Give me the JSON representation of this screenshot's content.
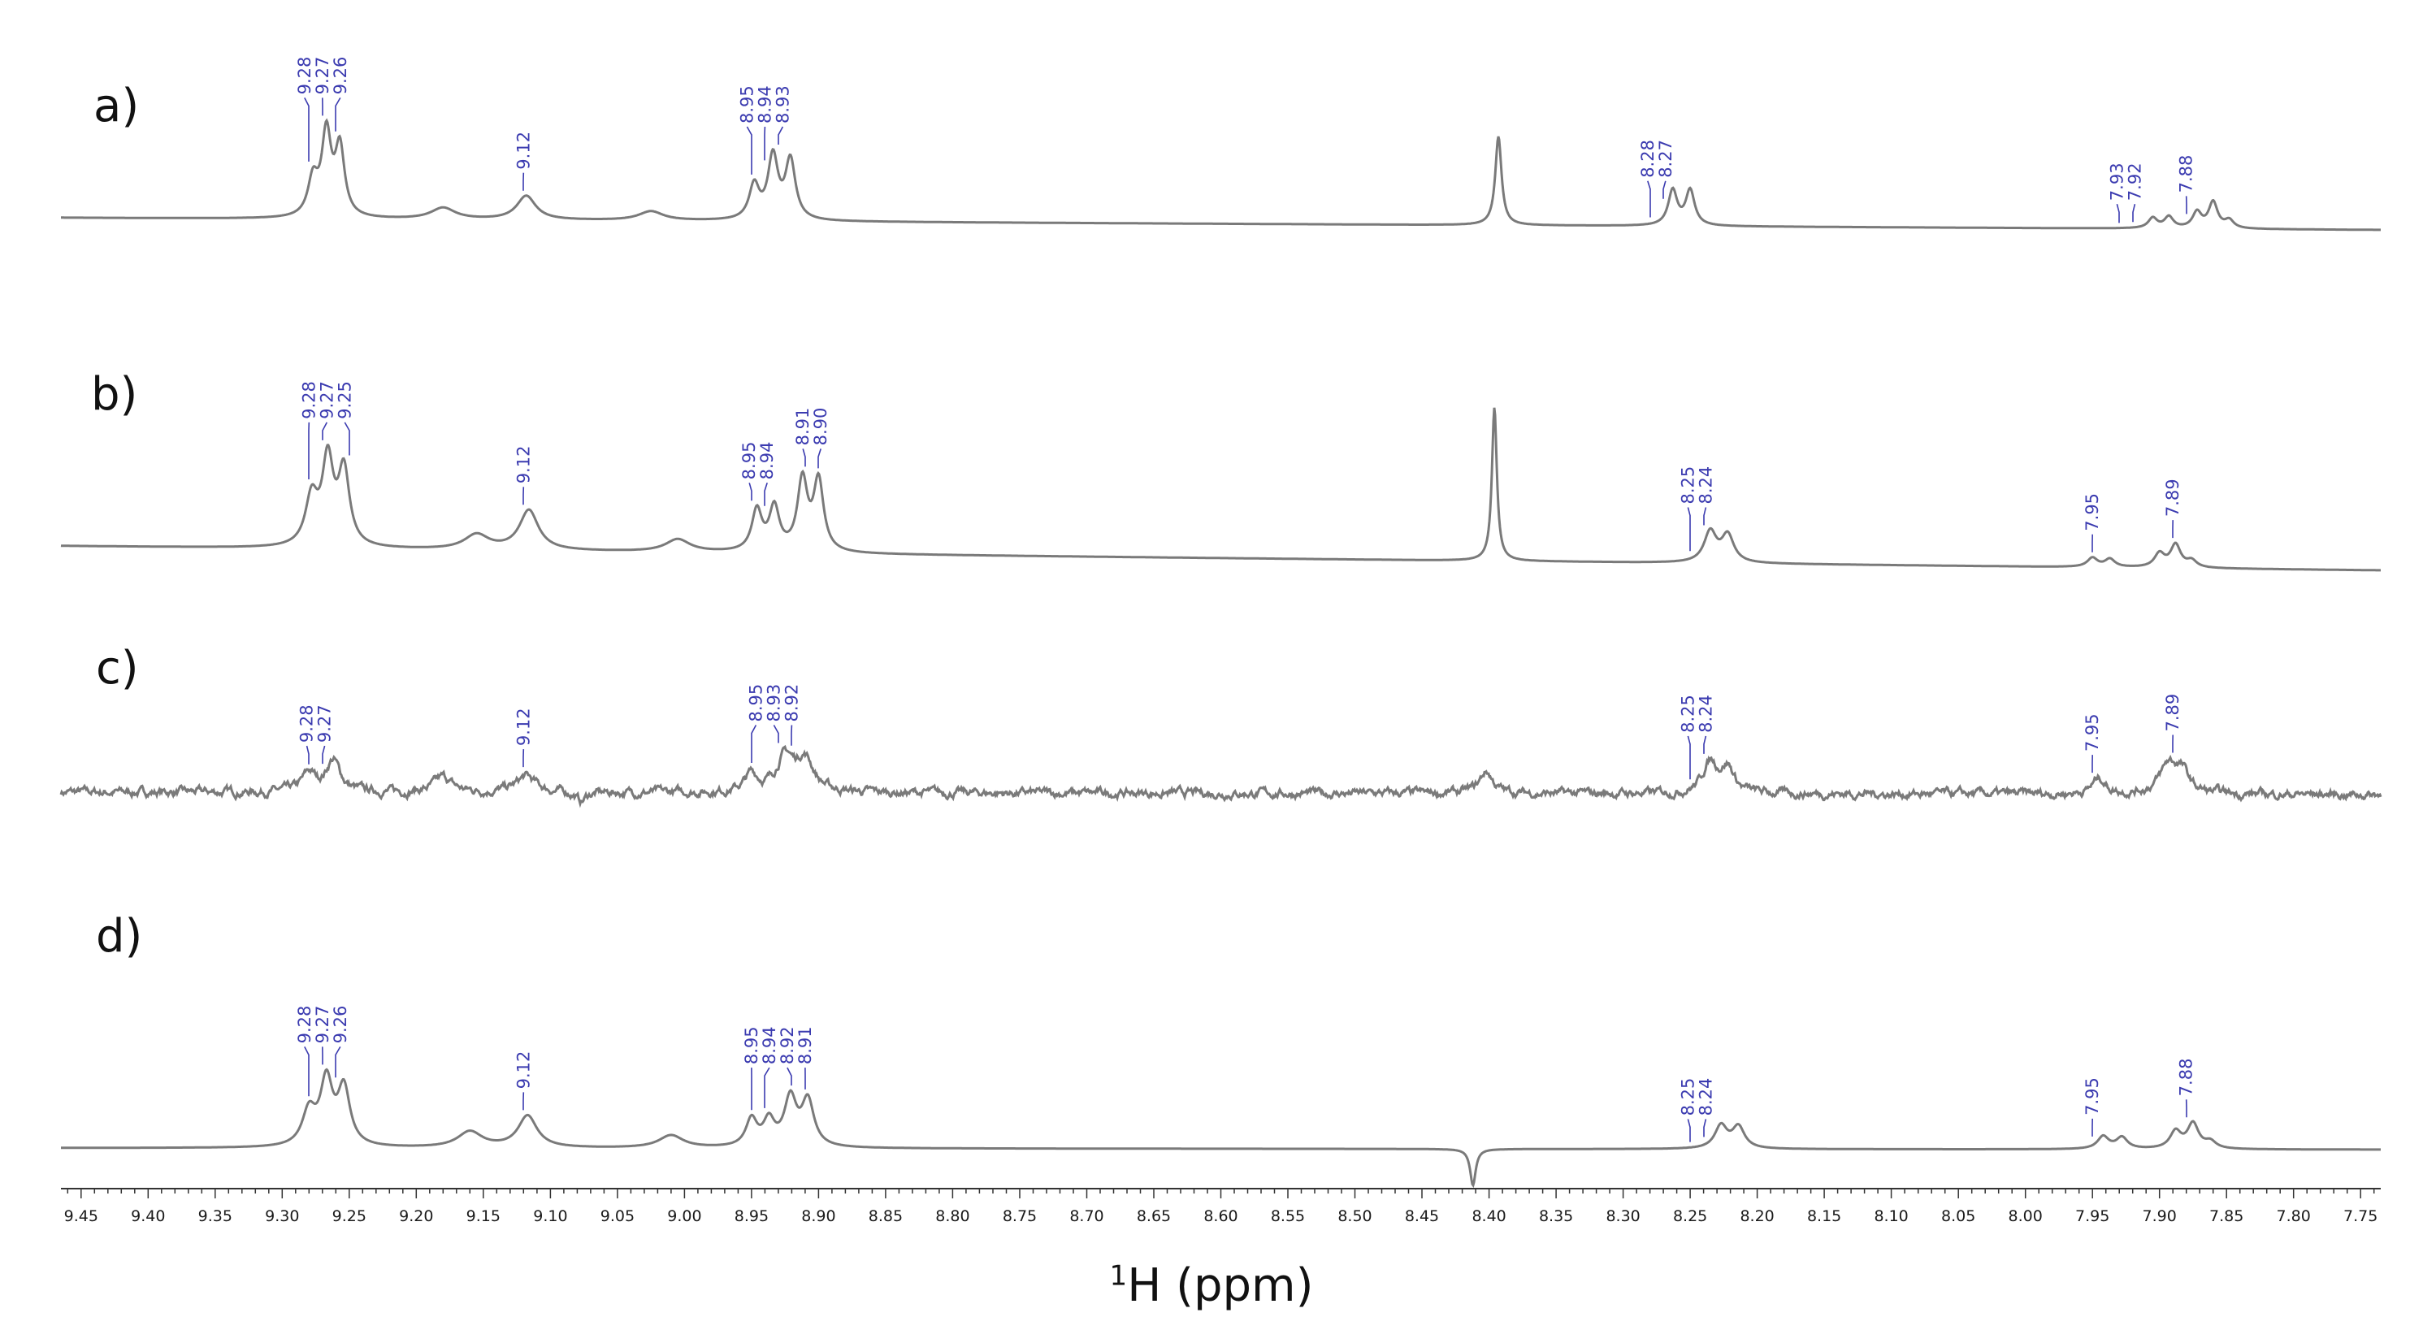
{
  "chart_data": {
    "type": "line",
    "xlabel_pre": "1",
    "xlabel_post": "H (ppm)",
    "xlim": [
      9.465,
      7.735
    ],
    "x_reversed": true,
    "ticks": [
      "9.45",
      "9.40",
      "9.35",
      "9.30",
      "9.25",
      "9.20",
      "9.15",
      "9.10",
      "9.05",
      "9.00",
      "8.95",
      "8.90",
      "8.85",
      "8.80",
      "8.75",
      "8.70",
      "8.65",
      "8.60",
      "8.55",
      "8.50",
      "8.45",
      "8.40",
      "8.35",
      "8.30",
      "8.25",
      "8.20",
      "8.15",
      "8.10",
      "8.05",
      "8.00",
      "7.95",
      "7.90",
      "7.85",
      "7.80",
      "7.75"
    ],
    "line_color": "#7a7a7a",
    "peak_label_color": "#3b3bb0",
    "spectra": [
      {
        "label": "a)",
        "peak_labels": [
          "9.28",
          "9.27",
          "9.26",
          "9.12",
          "8.95",
          "8.94",
          "8.93",
          "8.28",
          "8.27",
          "7.93",
          "7.92",
          "7.88"
        ],
        "peaks": [
          {
            "x": 9.277,
            "h": 0.32,
            "w": 0.0045
          },
          {
            "x": 9.267,
            "h": 0.72,
            "w": 0.0042
          },
          {
            "x": 9.257,
            "h": 0.6,
            "w": 0.0042
          },
          {
            "x": 9.18,
            "h": 0.1,
            "w": 0.011
          },
          {
            "x": 9.118,
            "h": 0.21,
            "w": 0.0085
          },
          {
            "x": 9.025,
            "h": 0.08,
            "w": 0.011
          },
          {
            "x": 8.948,
            "h": 0.3,
            "w": 0.0045
          },
          {
            "x": 8.934,
            "h": 0.55,
            "w": 0.0045
          },
          {
            "x": 8.921,
            "h": 0.52,
            "w": 0.0045
          },
          {
            "x": 8.393,
            "h": 0.78,
            "w": 0.0028
          },
          {
            "x": 8.263,
            "h": 0.31,
            "w": 0.004
          },
          {
            "x": 8.25,
            "h": 0.31,
            "w": 0.004
          },
          {
            "x": 7.905,
            "h": 0.09,
            "w": 0.004
          },
          {
            "x": 7.893,
            "h": 0.1,
            "w": 0.004
          },
          {
            "x": 7.872,
            "h": 0.14,
            "w": 0.004
          },
          {
            "x": 7.86,
            "h": 0.23,
            "w": 0.004
          },
          {
            "x": 7.848,
            "h": 0.07,
            "w": 0.004
          }
        ]
      },
      {
        "label": "b)",
        "peak_labels": [
          "9.28",
          "9.27",
          "9.25",
          "9.12",
          "8.95",
          "8.94",
          "8.91",
          "8.90",
          "8.25",
          "8.24",
          "7.95",
          "7.89"
        ],
        "peaks": [
          {
            "x": 9.278,
            "h": 0.42,
            "w": 0.0055
          },
          {
            "x": 9.266,
            "h": 0.74,
            "w": 0.005
          },
          {
            "x": 9.254,
            "h": 0.66,
            "w": 0.005
          },
          {
            "x": 9.155,
            "h": 0.13,
            "w": 0.011
          },
          {
            "x": 9.116,
            "h": 0.35,
            "w": 0.0085
          },
          {
            "x": 9.005,
            "h": 0.11,
            "w": 0.011
          },
          {
            "x": 8.946,
            "h": 0.36,
            "w": 0.0045
          },
          {
            "x": 8.933,
            "h": 0.38,
            "w": 0.0045
          },
          {
            "x": 8.912,
            "h": 0.62,
            "w": 0.0045
          },
          {
            "x": 8.9,
            "h": 0.62,
            "w": 0.0045
          },
          {
            "x": 8.396,
            "h": 1.35,
            "w": 0.0022
          },
          {
            "x": 8.235,
            "h": 0.27,
            "w": 0.0055
          },
          {
            "x": 8.222,
            "h": 0.24,
            "w": 0.0055
          },
          {
            "x": 7.95,
            "h": 0.08,
            "w": 0.0045
          },
          {
            "x": 7.937,
            "h": 0.07,
            "w": 0.0045
          },
          {
            "x": 7.9,
            "h": 0.12,
            "w": 0.0045
          },
          {
            "x": 7.888,
            "h": 0.2,
            "w": 0.0045
          },
          {
            "x": 7.876,
            "h": 0.06,
            "w": 0.0045
          }
        ]
      },
      {
        "label": "c)",
        "peak_labels": [
          "9.28",
          "9.27",
          "9.12",
          "8.95",
          "8.93",
          "8.92",
          "8.25",
          "8.24",
          "7.95",
          "7.89"
        ],
        "peaks": [
          {
            "x": 9.28,
            "h": 0.15,
            "w": 0.006
          },
          {
            "x": 9.262,
            "h": 0.26,
            "w": 0.0065
          },
          {
            "x": 9.18,
            "h": 0.12,
            "w": 0.008
          },
          {
            "x": 9.118,
            "h": 0.13,
            "w": 0.009
          },
          {
            "x": 9.077,
            "h": -0.08,
            "w": 0.004
          },
          {
            "x": 8.95,
            "h": 0.14,
            "w": 0.006
          },
          {
            "x": 8.925,
            "h": 0.28,
            "w": 0.008
          },
          {
            "x": 8.91,
            "h": 0.26,
            "w": 0.008
          },
          {
            "x": 8.402,
            "h": 0.18,
            "w": 0.006
          },
          {
            "x": 8.235,
            "h": 0.25,
            "w": 0.007
          },
          {
            "x": 8.222,
            "h": 0.2,
            "w": 0.006
          },
          {
            "x": 7.945,
            "h": 0.13,
            "w": 0.006
          },
          {
            "x": 7.893,
            "h": 0.24,
            "w": 0.008
          },
          {
            "x": 7.883,
            "h": 0.15,
            "w": 0.006
          }
        ]
      },
      {
        "label": "d)",
        "peak_labels": [
          "9.28",
          "9.27",
          "9.26",
          "9.12",
          "8.95",
          "8.94",
          "8.92",
          "8.91",
          "8.25",
          "8.24",
          "7.95",
          "7.88"
        ],
        "peaks": [
          {
            "x": 9.28,
            "h": 0.3,
            "w": 0.006
          },
          {
            "x": 9.267,
            "h": 0.56,
            "w": 0.0055
          },
          {
            "x": 9.254,
            "h": 0.5,
            "w": 0.0055
          },
          {
            "x": 9.16,
            "h": 0.14,
            "w": 0.011
          },
          {
            "x": 9.117,
            "h": 0.28,
            "w": 0.0085
          },
          {
            "x": 9.01,
            "h": 0.11,
            "w": 0.011
          },
          {
            "x": 8.95,
            "h": 0.24,
            "w": 0.005
          },
          {
            "x": 8.937,
            "h": 0.22,
            "w": 0.005
          },
          {
            "x": 8.921,
            "h": 0.42,
            "w": 0.0055
          },
          {
            "x": 8.908,
            "h": 0.4,
            "w": 0.0055
          },
          {
            "x": 8.412,
            "h": -0.32,
            "w": 0.0025
          },
          {
            "x": 8.227,
            "h": 0.2,
            "w": 0.0055
          },
          {
            "x": 8.214,
            "h": 0.19,
            "w": 0.0055
          },
          {
            "x": 7.942,
            "h": 0.11,
            "w": 0.005
          },
          {
            "x": 7.928,
            "h": 0.1,
            "w": 0.005
          },
          {
            "x": 7.888,
            "h": 0.15,
            "w": 0.005
          },
          {
            "x": 7.875,
            "h": 0.22,
            "w": 0.005
          },
          {
            "x": 7.862,
            "h": 0.06,
            "w": 0.005
          }
        ]
      }
    ]
  }
}
